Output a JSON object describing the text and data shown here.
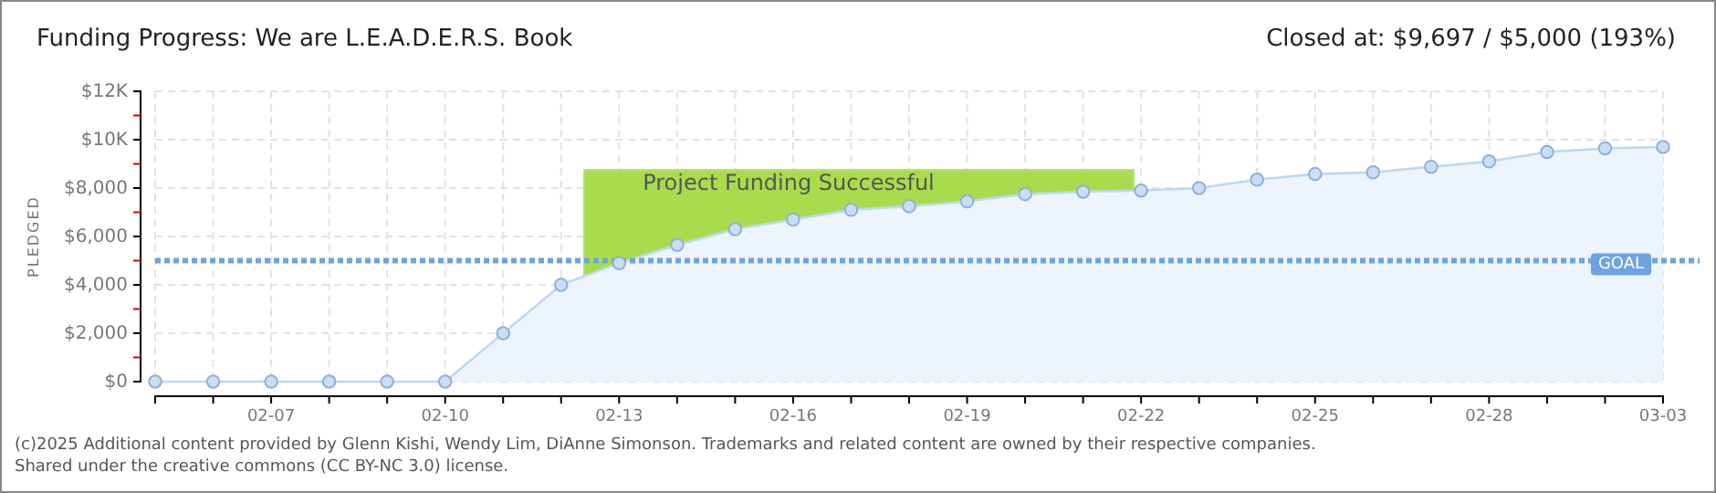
{
  "chart_data": {
    "type": "area",
    "title": "Funding Progress: We are L.E.A.D.E.R.S. Book",
    "subtitle": "Closed at:  $9,697 / $5,000 (193%)",
    "ylabel": "PLEDGED",
    "x": [
      "--02-05",
      "--02-06",
      "--02-07",
      "--02-08",
      "--02-09",
      "--02-10",
      "--02-11",
      "--02-12",
      "--02-13",
      "--02-14",
      "--02-15",
      "--02-16",
      "--02-17",
      "--02-18",
      "--02-19",
      "--02-20",
      "--02-21",
      "--02-22",
      "--02-23",
      "--02-24",
      "--02-25",
      "--02-26",
      "--02-27",
      "--02-28",
      "--03-01",
      "--03-02",
      "--03-03"
    ],
    "series": [
      {
        "color": "#bcd8f4",
        "values": [
          0,
          0,
          0,
          0,
          0,
          0,
          2000,
          4000,
          4900,
          5650,
          6300,
          6700,
          7100,
          7250,
          7450,
          7750,
          7850,
          7900,
          8000,
          8350,
          8580,
          8650,
          8880,
          9100,
          9490,
          9640,
          9697
        ]
      }
    ],
    "xlim": [
      "--02-05",
      "--03-03"
    ],
    "xticks": [
      {
        "value": "--02-05",
        "label": null
      },
      {
        "value": "--02-06",
        "label": null
      },
      {
        "value": "--02-07",
        "label": "02-07"
      },
      {
        "value": "--02-08",
        "label": null
      },
      {
        "value": "--02-09",
        "label": null
      },
      {
        "value": "--02-10",
        "label": "02-10"
      },
      {
        "value": "--02-11",
        "label": null
      },
      {
        "value": "--02-12",
        "label": null
      },
      {
        "value": "--02-13",
        "label": "02-13"
      },
      {
        "value": "--02-14",
        "label": null
      },
      {
        "value": "--02-15",
        "label": null
      },
      {
        "value": "--02-16",
        "label": "02-16"
      },
      {
        "value": "--02-17",
        "label": null
      },
      {
        "value": "--02-18",
        "label": null
      },
      {
        "value": "--02-19",
        "label": "02-19"
      },
      {
        "value": "--02-20",
        "label": null
      },
      {
        "value": "--02-21",
        "label": null
      },
      {
        "value": "--02-22",
        "label": "02-22"
      },
      {
        "value": "--02-23",
        "label": null
      },
      {
        "value": "--02-24",
        "label": null
      },
      {
        "value": "--02-25",
        "label": "02-25"
      },
      {
        "value": "--02-26",
        "label": null
      },
      {
        "value": "--02-27",
        "label": null
      },
      {
        "value": "--02-28",
        "label": "02-28"
      },
      {
        "value": "--03-01",
        "label": null
      },
      {
        "value": "--03-02",
        "label": null
      },
      {
        "value": "--03-03",
        "label": "03-03"
      }
    ],
    "ylim": [
      0,
      12000
    ],
    "yticks": [
      {
        "value": 0,
        "label": "$0"
      },
      {
        "value": 1000,
        "label": null
      },
      {
        "value": 2000,
        "label": "$2,000"
      },
      {
        "value": 3000,
        "label": null
      },
      {
        "value": 4000,
        "label": "$4,000"
      },
      {
        "value": 5000,
        "label": null
      },
      {
        "value": 6000,
        "label": "$6,000"
      },
      {
        "value": 7000,
        "label": null
      },
      {
        "value": 8000,
        "label": "$8,000"
      },
      {
        "value": 9000,
        "label": null
      },
      {
        "value": 10000,
        "label": "$10K"
      },
      {
        "value": 11000,
        "label": null
      },
      {
        "value": 12000,
        "label": "$12K"
      }
    ],
    "grid": true,
    "marker": "circle",
    "ref_lines": [
      {
        "axis": "y",
        "value": 5000,
        "label": "GOAL",
        "color": "#6fa3df",
        "line_style": "dotted"
      }
    ],
    "annotations": [
      "Project Funding Successful",
      "(c)2025 Additional content provided by Glenn Kishi, Wendy Lim, DiAnne Simonson. Trademarks and related content are owned by their respective companies.",
      "Shared under the creative commons (CC BY-NC 3.0) license."
    ]
  }
}
